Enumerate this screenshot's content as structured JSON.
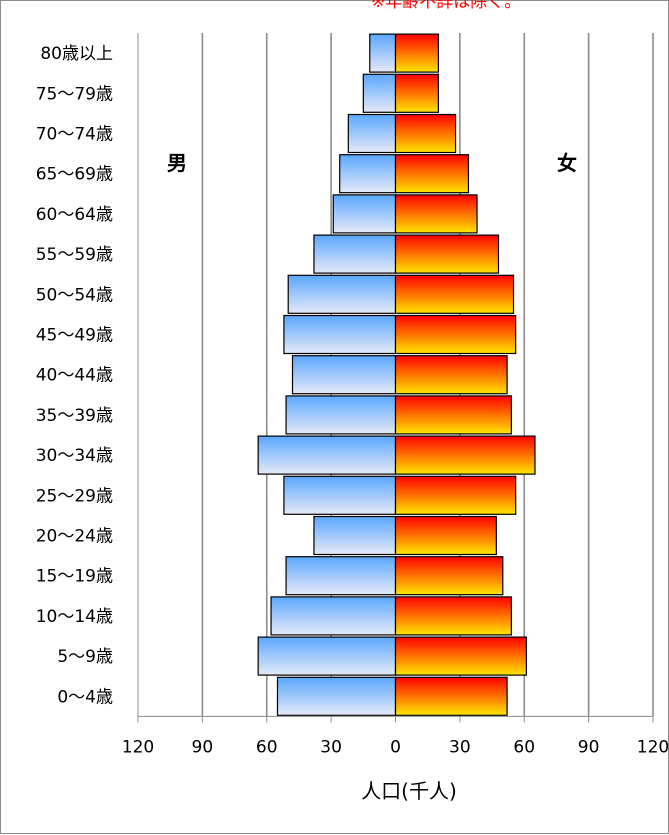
{
  "chart_data": {
    "type": "bar",
    "orientation": "horizontal-pyramid",
    "note": "※年齢不詳は除く。",
    "categories": [
      "80歳以上",
      "75〜79歳",
      "70〜74歳",
      "65〜69歳",
      "60〜64歳",
      "55〜59歳",
      "50〜54歳",
      "45〜49歳",
      "40〜44歳",
      "35〜39歳",
      "30〜34歳",
      "25〜29歳",
      "20〜24歳",
      "15〜19歳",
      "10〜14歳",
      "5〜9歳",
      "0〜4歳"
    ],
    "series": [
      {
        "name": "男",
        "values": [
          12,
          15,
          22,
          26,
          29,
          38,
          50,
          52,
          48,
          51,
          64,
          52,
          38,
          51,
          58,
          64,
          55
        ],
        "colors": [
          "#5aa7ff",
          "#e6e9f7"
        ]
      },
      {
        "name": "女",
        "values": [
          20,
          20,
          28,
          34,
          38,
          48,
          55,
          56,
          52,
          54,
          65,
          56,
          47,
          50,
          54,
          61,
          52
        ],
        "colors": [
          "#ff0000",
          "#ffe600"
        ]
      }
    ],
    "x_ticks": [
      "120",
      "90",
      "60",
      "30",
      "0",
      "30",
      "60",
      "90",
      "120"
    ],
    "xlim": [
      -120,
      120
    ],
    "xlabel": "人口(千人)",
    "grid": true,
    "legend": "none"
  }
}
